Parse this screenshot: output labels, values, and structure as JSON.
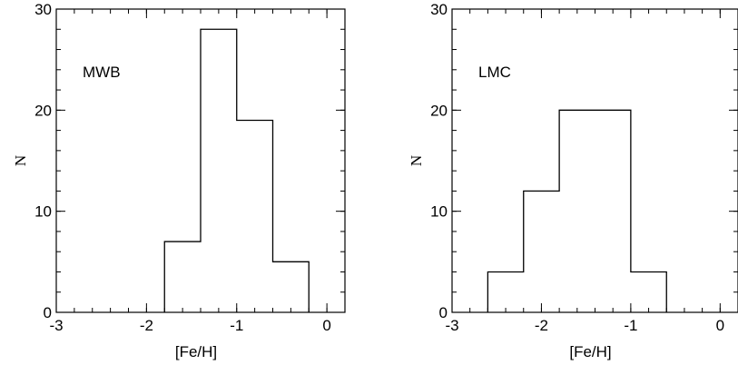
{
  "chart_data": [
    {
      "type": "bar",
      "subtype": "step-histogram",
      "annotation": "MWB",
      "xlabel": "[Fe/H]",
      "ylabel": "N",
      "xlim": [
        -3,
        0.2
      ],
      "ylim": [
        0,
        30
      ],
      "xticks": [
        -3,
        -2,
        -1,
        0
      ],
      "yticks": [
        0,
        10,
        20,
        30
      ],
      "x_minor_step": 0.2,
      "y_minor_step": 2,
      "bins": [
        {
          "x0": -1.8,
          "x1": -1.4,
          "value": 7
        },
        {
          "x0": -1.4,
          "x1": -1.0,
          "value": 28
        },
        {
          "x0": -1.0,
          "x1": -0.6,
          "value": 19
        },
        {
          "x0": -0.6,
          "x1": -0.2,
          "value": 5
        }
      ]
    },
    {
      "type": "bar",
      "subtype": "step-histogram",
      "annotation": "LMC",
      "xlabel": "[Fe/H]",
      "ylabel": "N",
      "xlim": [
        -3,
        0.2
      ],
      "ylim": [
        0,
        30
      ],
      "xticks": [
        -3,
        -2,
        -1,
        0
      ],
      "yticks": [
        0,
        10,
        20,
        30
      ],
      "x_minor_step": 0.2,
      "y_minor_step": 2,
      "bins": [
        {
          "x0": -2.6,
          "x1": -2.2,
          "value": 4
        },
        {
          "x0": -2.2,
          "x1": -1.8,
          "value": 12
        },
        {
          "x0": -1.8,
          "x1": -1.0,
          "value": 20
        },
        {
          "x0": -1.0,
          "x1": -0.6,
          "value": 4
        }
      ]
    }
  ]
}
